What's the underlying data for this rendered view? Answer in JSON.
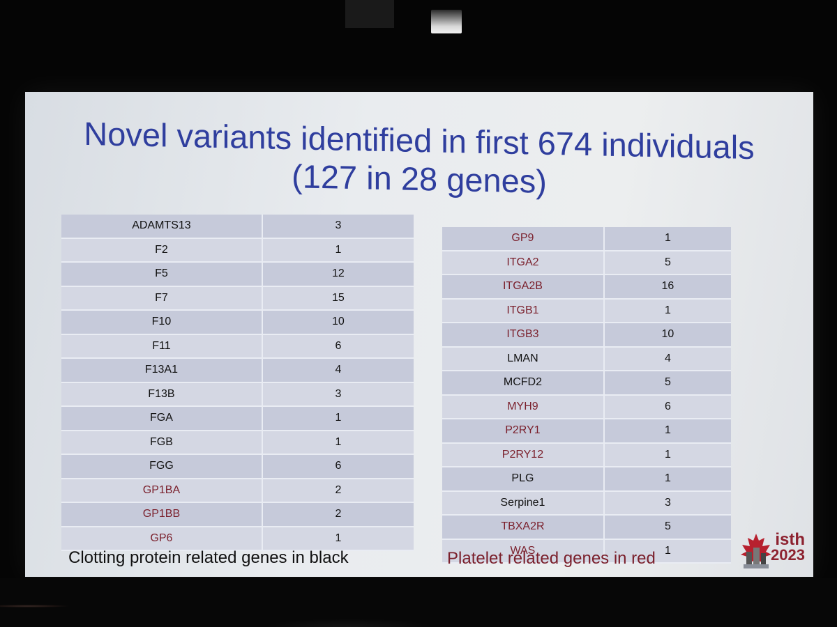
{
  "slide": {
    "title_line1": "Novel variants identified in first 674 individuals",
    "title_line2": "(127 in 28 genes)",
    "left_table": [
      {
        "gene": "ADAMTS13",
        "count": "3",
        "group": "clotting"
      },
      {
        "gene": "F2",
        "count": "1",
        "group": "clotting"
      },
      {
        "gene": "F5",
        "count": "12",
        "group": "clotting"
      },
      {
        "gene": "F7",
        "count": "15",
        "group": "clotting"
      },
      {
        "gene": "F10",
        "count": "10",
        "group": "clotting"
      },
      {
        "gene": "F11",
        "count": "6",
        "group": "clotting"
      },
      {
        "gene": "F13A1",
        "count": "4",
        "group": "clotting"
      },
      {
        "gene": "F13B",
        "count": "3",
        "group": "clotting"
      },
      {
        "gene": "FGA",
        "count": "1",
        "group": "clotting"
      },
      {
        "gene": "FGB",
        "count": "1",
        "group": "clotting"
      },
      {
        "gene": "FGG",
        "count": "6",
        "group": "clotting"
      },
      {
        "gene": "GP1BA",
        "count": "2",
        "group": "platelet"
      },
      {
        "gene": "GP1BB",
        "count": "2",
        "group": "platelet"
      },
      {
        "gene": "GP6",
        "count": "1",
        "group": "platelet"
      }
    ],
    "right_table": [
      {
        "gene": "GP9",
        "count": "1",
        "group": "platelet"
      },
      {
        "gene": "ITGA2",
        "count": "5",
        "group": "platelet"
      },
      {
        "gene": "ITGA2B",
        "count": "16",
        "group": "platelet"
      },
      {
        "gene": "ITGB1",
        "count": "1",
        "group": "platelet"
      },
      {
        "gene": "ITGB3",
        "count": "10",
        "group": "platelet"
      },
      {
        "gene": "LMAN",
        "count": "4",
        "group": "clotting"
      },
      {
        "gene": "MCFD2",
        "count": "5",
        "group": "clotting"
      },
      {
        "gene": "MYH9",
        "count": "6",
        "group": "platelet"
      },
      {
        "gene": "P2RY1",
        "count": "1",
        "group": "platelet"
      },
      {
        "gene": "P2RY12",
        "count": "1",
        "group": "platelet"
      },
      {
        "gene": "PLG",
        "count": "1",
        "group": "clotting"
      },
      {
        "gene": "Serpine1",
        "count": "3",
        "group": "clotting"
      },
      {
        "gene": "TBXA2R",
        "count": "5",
        "group": "platelet"
      },
      {
        "gene": "WAS",
        "count": "1",
        "group": "platelet"
      }
    ],
    "caption_left": "Clotting protein related genes in black",
    "caption_right": "Platelet related genes in red",
    "logo": {
      "line1": "isth",
      "line2": "2023"
    }
  },
  "colors": {
    "title": "#2f3e9e",
    "clotting_gene": "#111111",
    "platelet_gene": "#7a1f2b"
  }
}
